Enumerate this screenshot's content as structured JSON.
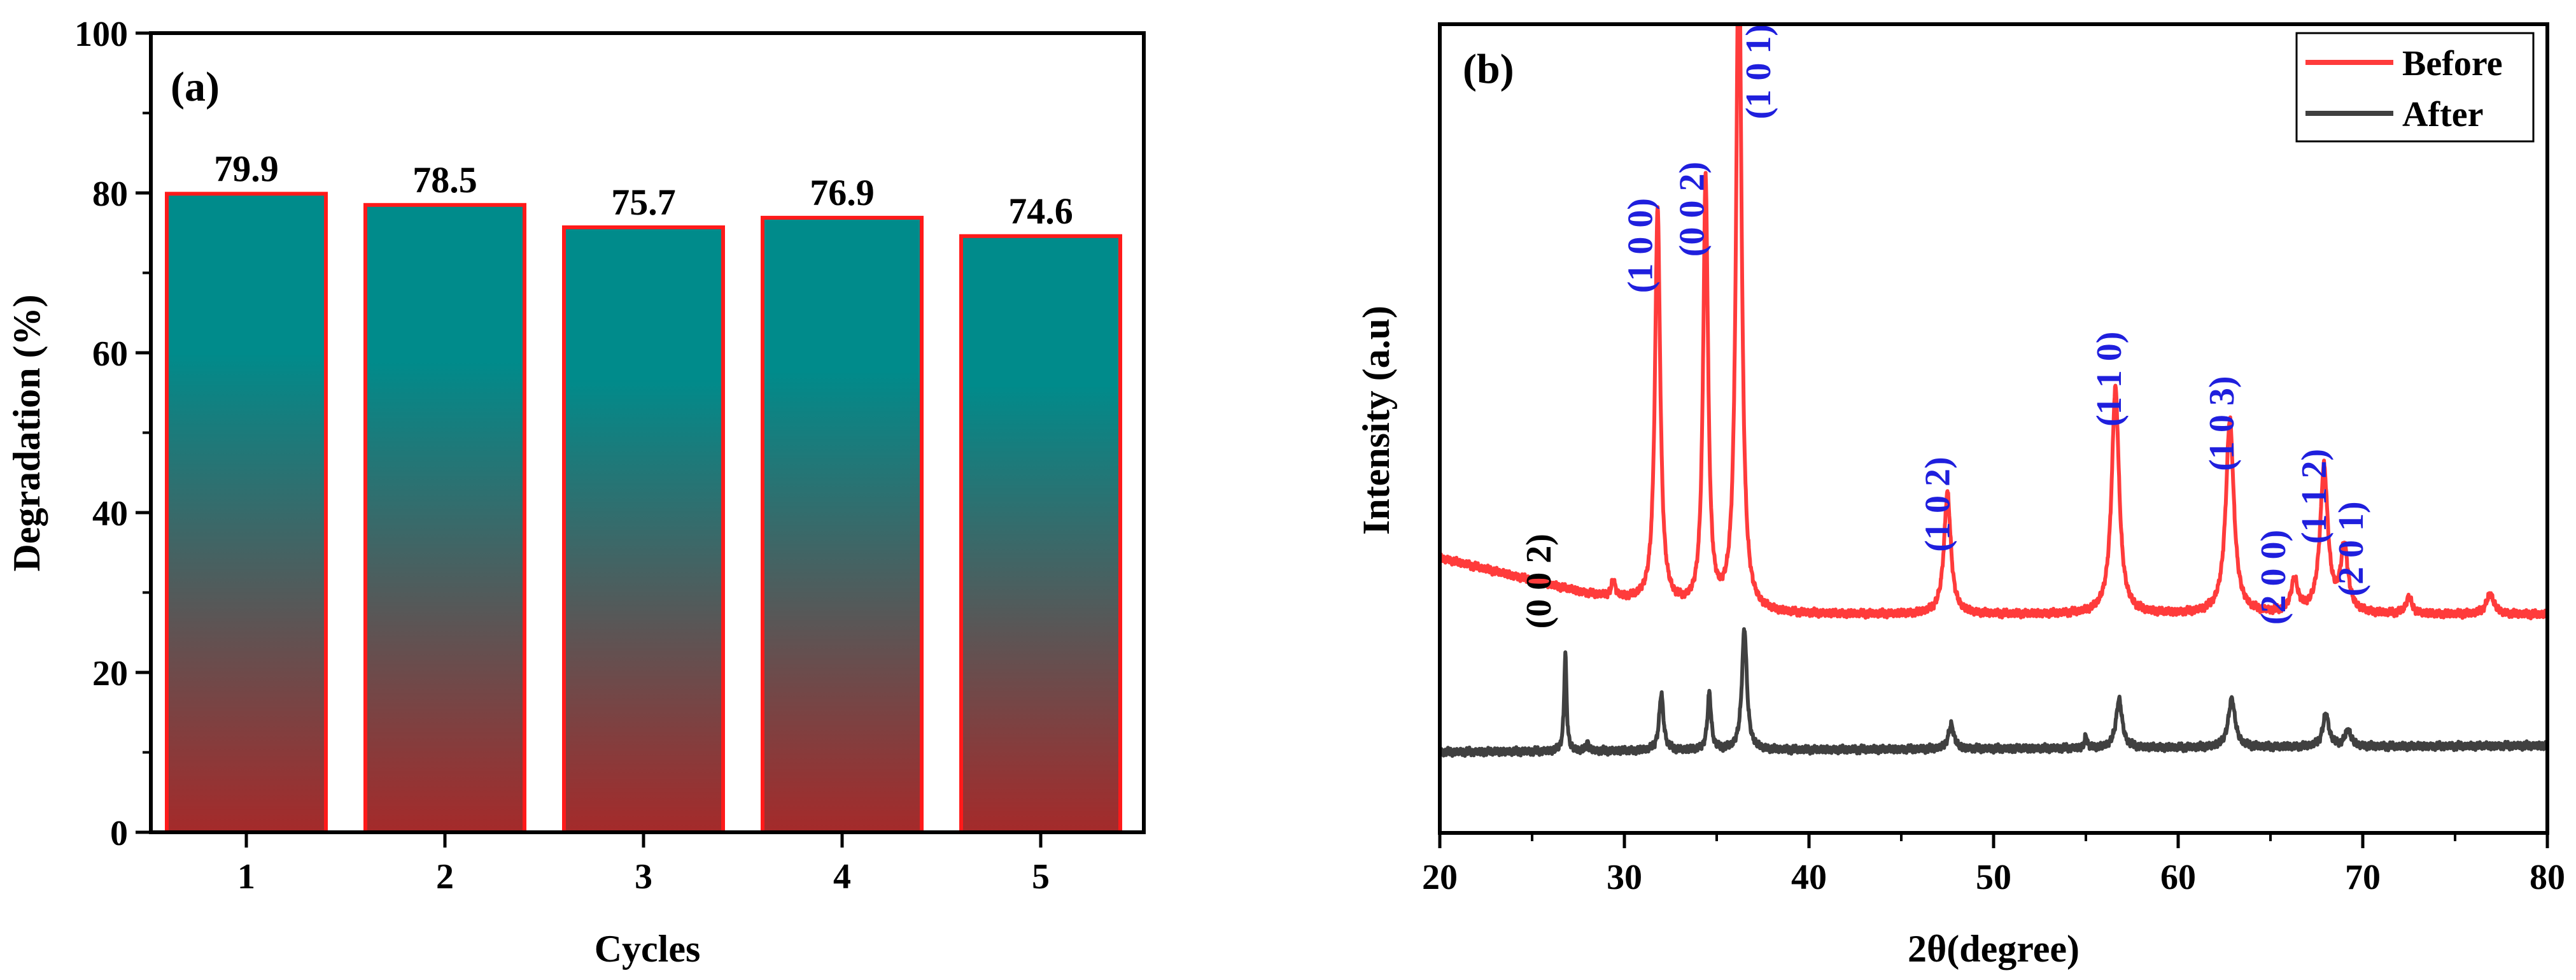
{
  "chart_data": [
    {
      "panel_label": "(a)",
      "type": "bar",
      "xlabel": "Cycles",
      "ylabel": "Degradation (%)",
      "categories": [
        "1",
        "2",
        "3",
        "4",
        "5"
      ],
      "values": [
        79.9,
        78.5,
        75.7,
        76.9,
        74.6
      ],
      "data_labels": [
        "79.9",
        "78.5",
        "75.7",
        "76.9",
        "74.6"
      ],
      "ylim": [
        0,
        100
      ],
      "yticks": [
        0,
        20,
        40,
        60,
        80,
        100
      ],
      "grid": false,
      "colors": {
        "top": "#008b8b",
        "bottom": "#a52a2a",
        "outline": "#ff1a1a"
      }
    },
    {
      "panel_label": "(b)",
      "type": "line",
      "xlabel": "2θ(degree)",
      "ylabel": "Intensity (a.u)",
      "xlim": [
        20,
        80
      ],
      "xticks": [
        20,
        30,
        40,
        50,
        60,
        70,
        80
      ],
      "yticks_shown": false,
      "legend_position": "top-right",
      "series": [
        {
          "name": "Before",
          "color": "#ff3b3b",
          "baseline": 0.27,
          "background": [
            [
              20,
              0.07
            ],
            [
              28,
              0.025
            ],
            [
              35,
              0.0
            ],
            [
              80,
              0.0
            ]
          ],
          "peaks": [
            {
              "x": 29.4,
              "h": 0.02,
              "w": 0.12
            },
            {
              "x": 31.8,
              "h": 0.49,
              "w": 0.17
            },
            {
              "x": 34.4,
              "h": 0.53,
              "w": 0.16
            },
            {
              "x": 36.2,
              "h": 0.87,
              "w": 0.17
            },
            {
              "x": 47.5,
              "h": 0.15,
              "w": 0.22
            },
            {
              "x": 56.6,
              "h": 0.28,
              "w": 0.24
            },
            {
              "x": 62.8,
              "h": 0.24,
              "w": 0.26
            },
            {
              "x": 66.3,
              "h": 0.04,
              "w": 0.22
            },
            {
              "x": 67.9,
              "h": 0.18,
              "w": 0.25
            },
            {
              "x": 69.0,
              "h": 0.08,
              "w": 0.24
            },
            {
              "x": 72.5,
              "h": 0.02,
              "w": 0.2
            },
            {
              "x": 76.9,
              "h": 0.025,
              "w": 0.25
            }
          ]
        },
        {
          "name": "After",
          "color": "#404040",
          "baseline": 0.1,
          "background": [
            [
              20,
              0.0
            ],
            [
              80,
              0.008
            ]
          ],
          "peaks": [
            {
              "x": 26.8,
              "h": 0.12,
              "w": 0.08
            },
            {
              "x": 28.0,
              "h": 0.01,
              "w": 0.08
            },
            {
              "x": 32.0,
              "h": 0.07,
              "w": 0.14
            },
            {
              "x": 34.6,
              "h": 0.07,
              "w": 0.12
            },
            {
              "x": 36.5,
              "h": 0.15,
              "w": 0.16
            },
            {
              "x": 47.7,
              "h": 0.03,
              "w": 0.18
            },
            {
              "x": 55.0,
              "h": 0.015,
              "w": 0.08
            },
            {
              "x": 56.8,
              "h": 0.06,
              "w": 0.2
            },
            {
              "x": 62.9,
              "h": 0.06,
              "w": 0.22
            },
            {
              "x": 68.0,
              "h": 0.04,
              "w": 0.2
            },
            {
              "x": 69.2,
              "h": 0.02,
              "w": 0.2
            }
          ]
        }
      ],
      "annotations": [
        {
          "text": "(0 0 2)",
          "x": 26.0,
          "y": 0.37,
          "rotate": -90,
          "color": "#000000"
        },
        {
          "text": "(1 0 0)",
          "x": 31.5,
          "y": 0.785,
          "rotate": -90,
          "color": "#1f1fdd"
        },
        {
          "text": "(0 0 2)",
          "x": 34.3,
          "y": 0.83,
          "rotate": -90,
          "color": "#1f1fdd"
        },
        {
          "text": "(1 0 1)",
          "x": 37.9,
          "y": 1.0,
          "rotate": -90,
          "color": "#1f1fdd"
        },
        {
          "text": "(1 0 2)",
          "x": 47.6,
          "y": 0.465,
          "rotate": -90,
          "color": "#1f1fdd"
        },
        {
          "text": "(1 1 0)",
          "x": 56.9,
          "y": 0.62,
          "rotate": -90,
          "color": "#1f1fdd"
        },
        {
          "text": "(1 0 3)",
          "x": 63.0,
          "y": 0.565,
          "rotate": -90,
          "color": "#1f1fdd"
        },
        {
          "text": "(2 0 0)",
          "x": 65.8,
          "y": 0.375,
          "rotate": -90,
          "color": "#1f1fdd"
        },
        {
          "text": "(1 1 2)",
          "x": 68.0,
          "y": 0.475,
          "rotate": -90,
          "color": "#1f1fdd"
        },
        {
          "text": "(2 0 1)",
          "x": 70.0,
          "y": 0.41,
          "rotate": -90,
          "color": "#1f1fdd"
        }
      ]
    }
  ]
}
